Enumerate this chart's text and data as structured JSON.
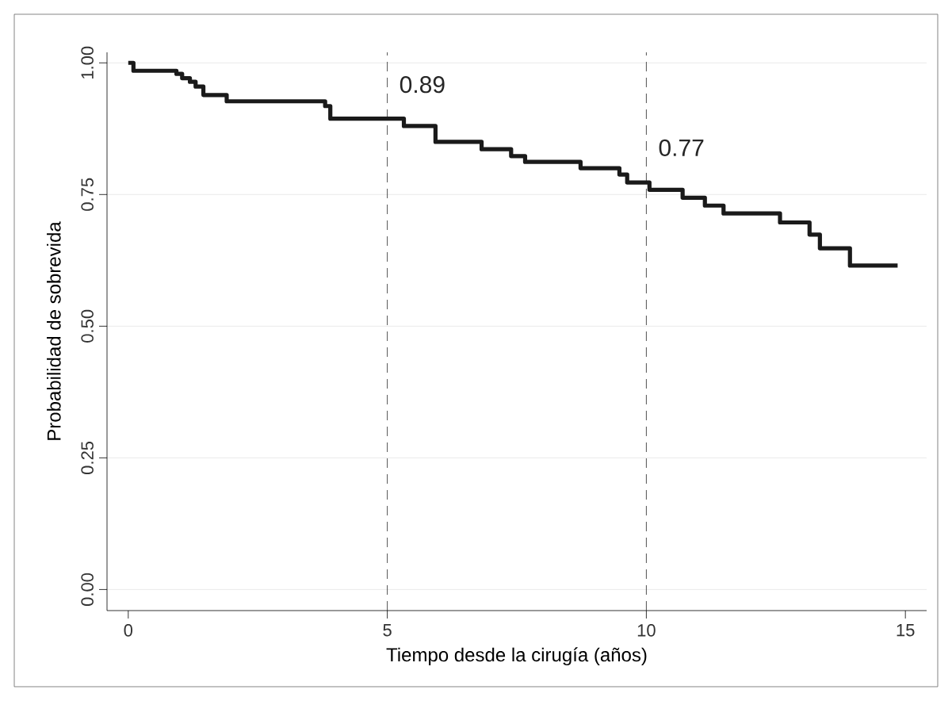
{
  "chart_data": {
    "type": "step",
    "xlabel": "Tiempo desde la cirugía (años)",
    "ylabel": "Probabilidad de sobrevida",
    "x": [
      0,
      0.1,
      0.93,
      1.04,
      1.19,
      1.3,
      1.45,
      1.9,
      3.8,
      3.9,
      5.32,
      5.93,
      6.82,
      7.39,
      7.66,
      8.73,
      9.48,
      9.63,
      10.06,
      10.7,
      11.13,
      11.49,
      12.58,
      13.15,
      13.35,
      13.93,
      14.85
    ],
    "series": [
      {
        "color": "#1a1a1a",
        "values": [
          1.0,
          0.985,
          0.979,
          0.971,
          0.964,
          0.955,
          0.939,
          0.927,
          0.918,
          0.894,
          0.88,
          0.85,
          0.836,
          0.823,
          0.812,
          0.8,
          0.788,
          0.773,
          0.759,
          0.744,
          0.729,
          0.714,
          0.697,
          0.674,
          0.648,
          0.615,
          0.615
        ]
      }
    ],
    "xlim": [
      -0.41,
      15.41
    ],
    "ylim": [
      -0.04,
      1.02
    ],
    "xticks": [
      0,
      5,
      10,
      15
    ],
    "yticks": [
      {
        "value": 0,
        "label": "0.00"
      },
      {
        "value": 0.25,
        "label": "0.25"
      },
      {
        "value": 0.5,
        "label": "0.50"
      },
      {
        "value": 0.75,
        "label": "0.75"
      },
      {
        "value": 1,
        "label": "1.00"
      }
    ],
    "grid": "y",
    "marker": "none",
    "line_style": "solid",
    "ref_lines": [
      {
        "axis": "x",
        "value": 5,
        "line_style": "dashed"
      },
      {
        "axis": "x",
        "value": 10,
        "line_style": "dashed"
      }
    ],
    "annotations": [
      {
        "text": "0.89",
        "x": 5,
        "y": 0.89
      },
      {
        "text": "0.77",
        "x": 10,
        "y": 0.77
      }
    ]
  }
}
